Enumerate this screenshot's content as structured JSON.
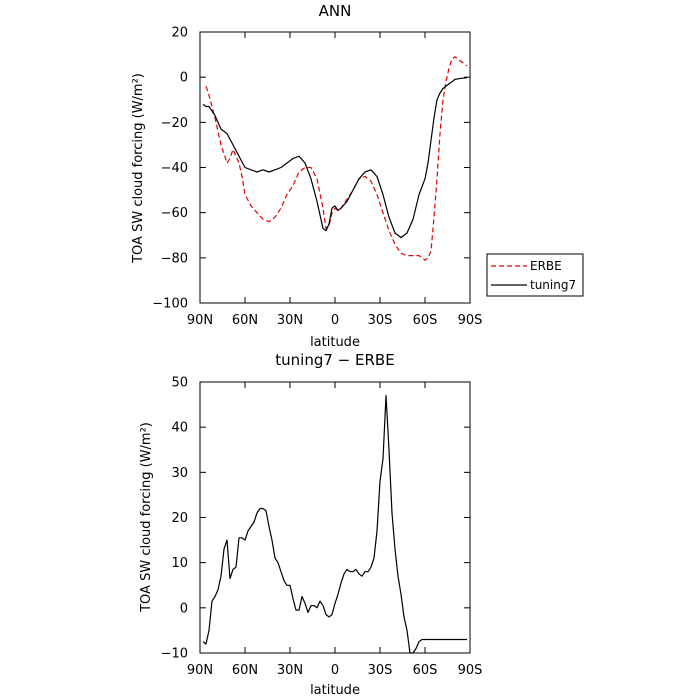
{
  "chart_data": [
    {
      "type": "line",
      "title": "ANN",
      "xlabel": "latitude",
      "ylabel": "TOA SW cloud forcing (W/m²)",
      "xlim": [
        90,
        -90
      ],
      "ylim": [
        -100,
        20
      ],
      "x_ticks": [
        {
          "value": 90,
          "label": "90N"
        },
        {
          "value": 60,
          "label": "60N"
        },
        {
          "value": 30,
          "label": "30N"
        },
        {
          "value": 0,
          "label": "0"
        },
        {
          "value": -30,
          "label": "30S"
        },
        {
          "value": -60,
          "label": "60S"
        },
        {
          "value": -90,
          "label": "90S"
        }
      ],
      "y_ticks": [
        20,
        0,
        -20,
        -40,
        -60,
        -80,
        -100
      ],
      "legend_position": "outside-right",
      "series": [
        {
          "name": "ERBE",
          "color": "#e00000",
          "dash": "dashed",
          "x": [
            86,
            84,
            80,
            76,
            72,
            70,
            68,
            66,
            64,
            62,
            60,
            56,
            52,
            48,
            44,
            40,
            36,
            32,
            28,
            24,
            20,
            16,
            12,
            8,
            6,
            4,
            2,
            0,
            -2,
            -4,
            -6,
            -8,
            -12,
            -16,
            -20,
            -24,
            -28,
            -32,
            -36,
            -40,
            -44,
            -48,
            -52,
            -56,
            -58,
            -60,
            -62,
            -64,
            -66,
            -68,
            -70,
            -72,
            -74,
            -76,
            -78,
            -80,
            -82,
            -84,
            -86,
            -88
          ],
          "values": [
            -4,
            -8,
            -18,
            -30,
            -38,
            -36,
            -32,
            -35,
            -38,
            -44,
            -52,
            -57,
            -60,
            -63,
            -64,
            -62,
            -58,
            -52,
            -48,
            -42,
            -40,
            -40,
            -45,
            -58,
            -67,
            -66,
            -60,
            -58,
            -59,
            -58,
            -56,
            -54,
            -50,
            -45,
            -44,
            -46,
            -52,
            -60,
            -68,
            -74,
            -78,
            -79,
            -79,
            -79,
            -80,
            -81,
            -80,
            -77,
            -62,
            -45,
            -25,
            -10,
            -2,
            4,
            8,
            9,
            8,
            7,
            6,
            5
          ]
        },
        {
          "name": "tuning7",
          "color": "#000000",
          "dash": "solid",
          "x": [
            88,
            86,
            84,
            80,
            76,
            72,
            68,
            64,
            60,
            56,
            52,
            48,
            44,
            40,
            36,
            32,
            28,
            24,
            20,
            16,
            12,
            8,
            6,
            4,
            2,
            0,
            -2,
            -4,
            -8,
            -12,
            -16,
            -20,
            -24,
            -28,
            -32,
            -36,
            -40,
            -44,
            -48,
            -52,
            -56,
            -60,
            -62,
            -64,
            -66,
            -68,
            -70,
            -72,
            -74,
            -76,
            -78,
            -80,
            -84,
            -88
          ],
          "values": [
            -12,
            -13,
            -13,
            -17,
            -23,
            -25,
            -30,
            -35,
            -40,
            -41,
            -42,
            -41,
            -42,
            -41,
            -40,
            -38,
            -36,
            -35,
            -38,
            -45,
            -55,
            -67,
            -68,
            -65,
            -58,
            -57,
            -59,
            -58,
            -55,
            -50,
            -45,
            -42,
            -41,
            -44,
            -52,
            -62,
            -69,
            -71,
            -69,
            -63,
            -52,
            -45,
            -38,
            -28,
            -18,
            -10,
            -7,
            -5,
            -4,
            -3,
            -2,
            -1,
            -0.5,
            -0.3
          ]
        }
      ]
    },
    {
      "type": "line",
      "title": "tuning7 − ERBE",
      "xlabel": "latitude",
      "ylabel": "TOA SW cloud forcing (W/m²)",
      "xlim": [
        90,
        -90
      ],
      "ylim": [
        -10,
        50
      ],
      "x_ticks": [
        {
          "value": 90,
          "label": "90N"
        },
        {
          "value": 60,
          "label": "60N"
        },
        {
          "value": 30,
          "label": "30N"
        },
        {
          "value": 0,
          "label": "0"
        },
        {
          "value": -30,
          "label": "30S"
        },
        {
          "value": -60,
          "label": "60S"
        },
        {
          "value": -90,
          "label": "90S"
        }
      ],
      "y_ticks": [
        50,
        40,
        30,
        20,
        10,
        0,
        -10
      ],
      "series": [
        {
          "color": "#000000",
          "dash": "solid",
          "x": [
            88,
            86,
            84,
            82,
            80,
            78,
            76,
            74,
            72,
            70,
            68,
            66,
            64,
            62,
            60,
            58,
            56,
            54,
            52,
            50,
            48,
            46,
            44,
            42,
            40,
            38,
            36,
            34,
            32,
            30,
            28,
            26,
            24,
            22,
            20,
            18,
            16,
            14,
            12,
            10,
            8,
            6,
            4,
            2,
            0,
            -2,
            -4,
            -6,
            -8,
            -10,
            -12,
            -14,
            -16,
            -18,
            -20,
            -22,
            -24,
            -26,
            -28,
            -30,
            -32,
            -34,
            -36,
            -38,
            -40,
            -42,
            -44,
            -46,
            -48,
            -50,
            -52,
            -54,
            -56,
            -58,
            -60,
            -62,
            -64,
            -66,
            -68,
            -70,
            -72,
            -74,
            -76,
            -78,
            -80,
            -82,
            -84,
            -86,
            -88
          ],
          "values": [
            -7.5,
            -8,
            -5,
            1.5,
            2.5,
            4,
            7,
            13,
            15,
            6.5,
            8.5,
            9,
            15.5,
            15.5,
            15,
            17,
            18,
            19,
            21,
            22,
            22,
            21.5,
            18,
            15,
            11,
            10,
            8,
            6,
            5,
            5,
            2,
            -0.5,
            -0.5,
            2.5,
            1,
            -1,
            0.5,
            0.5,
            0,
            1.5,
            0.5,
            -1.5,
            -2,
            -1.5,
            1,
            3,
            5.5,
            7.5,
            8.5,
            8,
            8,
            8.5,
            7.5,
            7,
            8,
            8,
            9,
            11,
            17,
            28,
            33,
            47,
            35,
            21,
            13,
            7,
            3,
            -2,
            -5,
            -10,
            -10,
            -9,
            -7.5,
            -7,
            -7,
            -7,
            -7,
            -7,
            -7,
            -7,
            -7,
            -7,
            -7,
            -7,
            -7,
            -7,
            -7,
            -7,
            -7
          ]
        }
      ]
    }
  ]
}
